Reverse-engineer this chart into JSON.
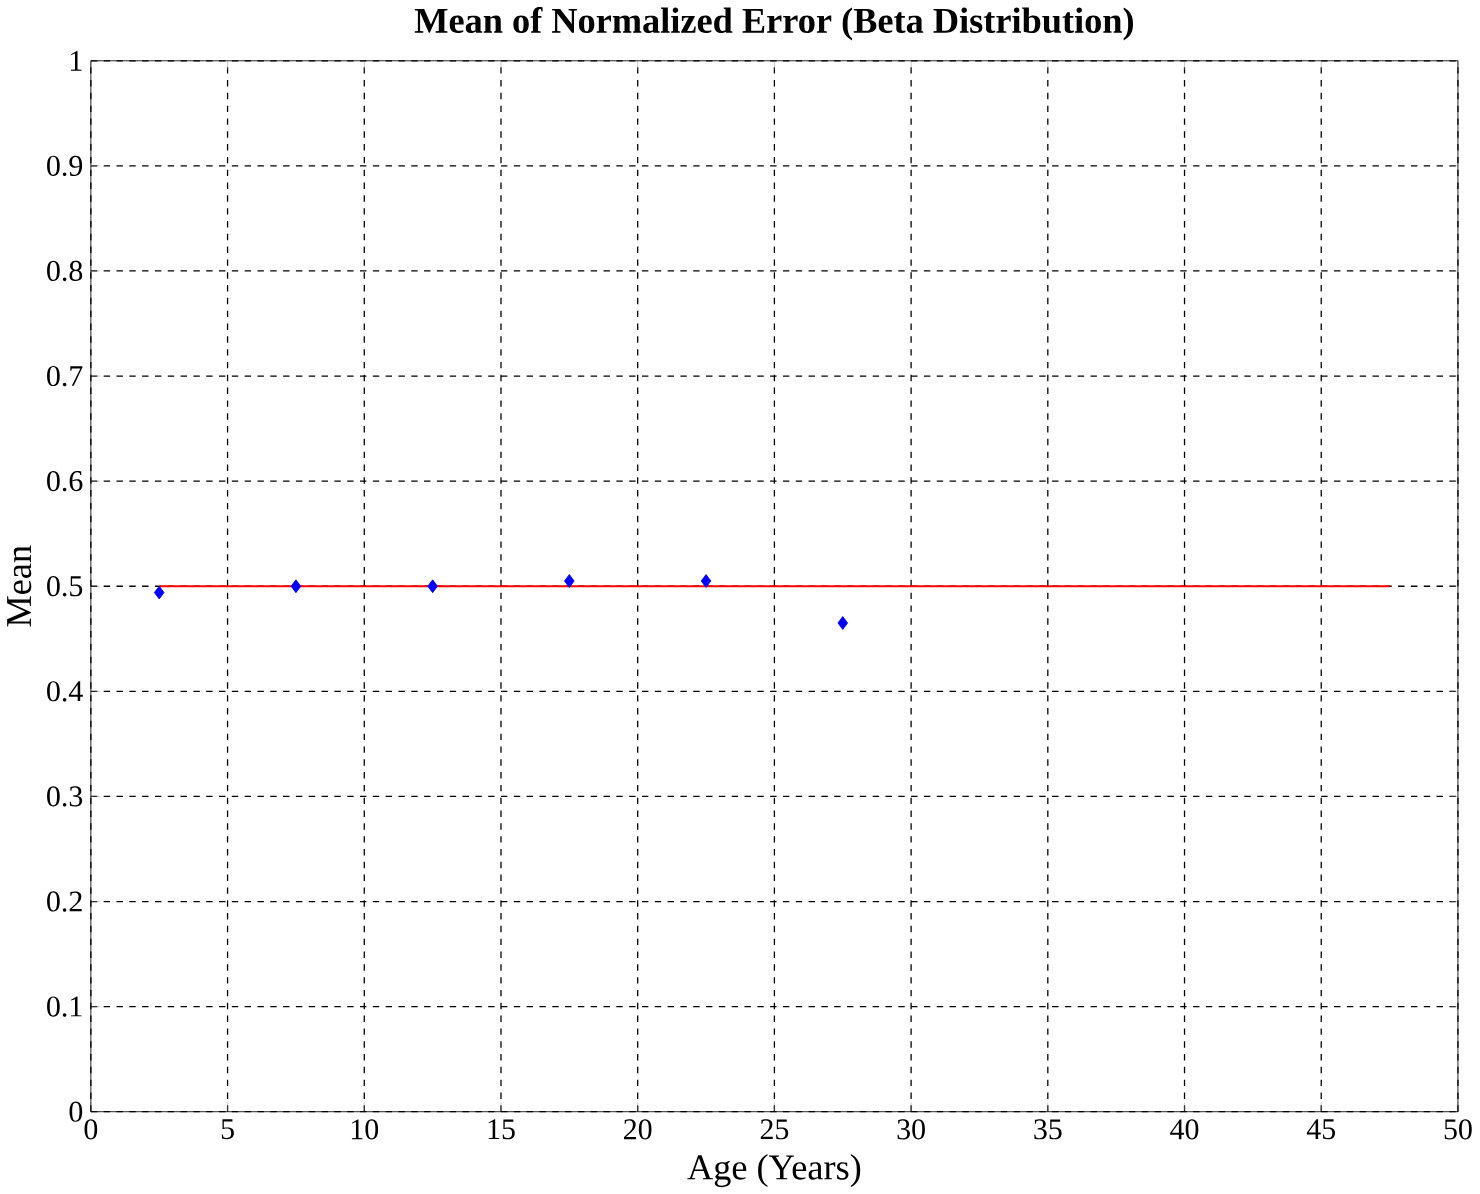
{
  "chart_data": {
    "type": "scatter",
    "title": "Mean of Normalized Error (Beta Distribution)",
    "xlabel": "Age (Years)",
    "ylabel": "Mean",
    "xlim": [
      0,
      50
    ],
    "ylim": [
      0,
      1
    ],
    "xticks": [
      0,
      5,
      10,
      15,
      20,
      25,
      30,
      35,
      40,
      45,
      50
    ],
    "yticks": [
      0,
      0.1,
      0.2,
      0.3,
      0.4,
      0.5,
      0.6,
      0.7,
      0.8,
      0.9,
      1
    ],
    "grid": true,
    "marker": "diamond",
    "series": [
      {
        "color": "#0000ff",
        "x": [
          2.5,
          7.5,
          12.5,
          17.5,
          22.5,
          27.5
        ],
        "values": [
          0.494,
          0.5,
          0.5,
          0.505,
          0.505,
          0.465
        ]
      },
      {
        "type": "line",
        "color": "#ff0000",
        "x": [
          2.5,
          47.5
        ],
        "values": [
          0.5,
          0.5
        ],
        "marker": "none",
        "line_style": "solid"
      }
    ]
  }
}
